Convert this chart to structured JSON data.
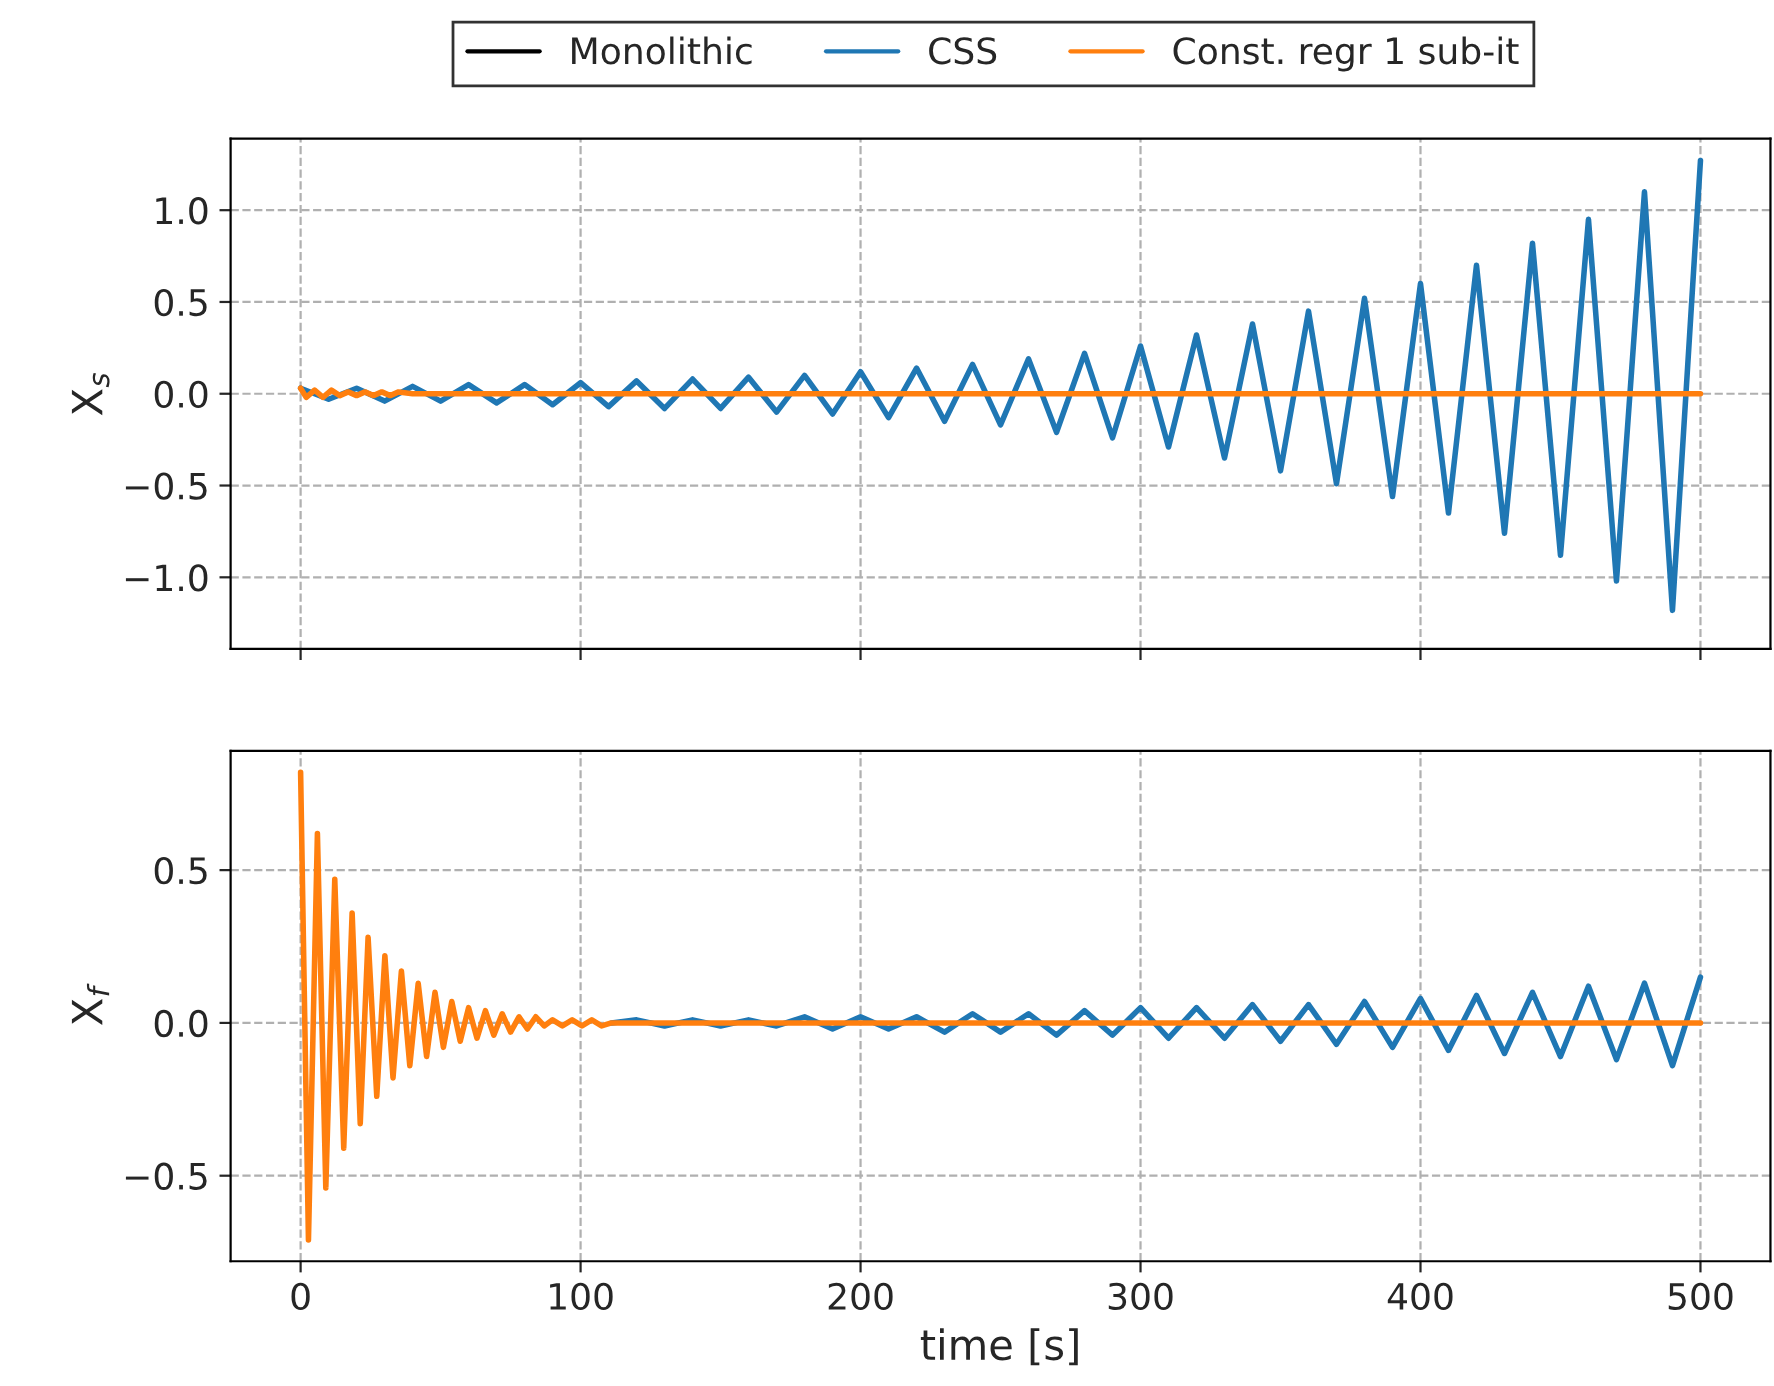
{
  "chart_data": [
    {
      "type": "line",
      "ylabel": "X$_{s}$",
      "legend": "top",
      "grid": true,
      "tick_labels": "y",
      "xlim": [
        -25,
        525
      ],
      "ylim": [
        -1.39,
        1.39
      ],
      "xticks": [
        {
          "value": 0,
          "label": null
        },
        {
          "value": 100,
          "label": null
        },
        {
          "value": 200,
          "label": null
        },
        {
          "value": 300,
          "label": null
        },
        {
          "value": 400,
          "label": null
        },
        {
          "value": 500,
          "label": null
        }
      ],
      "yticks": [
        {
          "value": -1.0,
          "label": "−1.0"
        },
        {
          "value": -0.5,
          "label": "−0.5"
        },
        {
          "value": 0.0,
          "label": "0.0"
        },
        {
          "value": 0.5,
          "label": "0.5"
        },
        {
          "value": 1.0,
          "label": "1.0"
        }
      ],
      "series": [
        {
          "name": "Monolithic",
          "color": "#000000"
        },
        {
          "name": "CSS",
          "color": "#1f77b4",
          "x": [
            0,
            10,
            20,
            30,
            40,
            50,
            60,
            70,
            80,
            90,
            100,
            110,
            120,
            130,
            140,
            150,
            160,
            170,
            180,
            190,
            200,
            210,
            220,
            230,
            240,
            250,
            260,
            270,
            280,
            290,
            300,
            310,
            320,
            330,
            340,
            350,
            360,
            370,
            380,
            390,
            400,
            410,
            420,
            430,
            440,
            450,
            460,
            470,
            480,
            490,
            500
          ],
          "values": [
            0.03,
            -0.03,
            0.03,
            -0.04,
            0.04,
            -0.04,
            0.05,
            -0.05,
            0.05,
            -0.06,
            0.06,
            -0.07,
            0.07,
            -0.08,
            0.08,
            -0.08,
            0.09,
            -0.1,
            0.1,
            -0.11,
            0.12,
            -0.13,
            0.14,
            -0.15,
            0.16,
            -0.17,
            0.19,
            -0.21,
            0.22,
            -0.24,
            0.26,
            -0.29,
            0.32,
            -0.35,
            0.38,
            -0.42,
            0.45,
            -0.49,
            0.52,
            -0.56,
            0.6,
            -0.65,
            0.7,
            -0.76,
            0.82,
            -0.88,
            0.95,
            -1.02,
            1.1,
            -1.18,
            1.27
          ]
        },
        {
          "name": "Const. regr 1 sub-it",
          "color": "#ff7f0e",
          "x": [
            0,
            2,
            5,
            8,
            11,
            14,
            17,
            20,
            23,
            26,
            29,
            32,
            35,
            40,
            500
          ],
          "values": [
            0.03,
            -0.02,
            0.02,
            -0.02,
            0.02,
            -0.01,
            0.01,
            -0.01,
            0.01,
            -0.01,
            0.01,
            -0.01,
            0.01,
            0,
            0
          ]
        }
      ]
    },
    {
      "type": "line",
      "ylabel": "X$_{f}$",
      "xlabel": "time [s]",
      "grid": true,
      "xlim": [
        -25,
        525
      ],
      "ylim": [
        -0.78,
        0.89
      ],
      "xticks": [
        0,
        100,
        200,
        300,
        400,
        500
      ],
      "yticks": [
        {
          "value": -0.5,
          "label": "−0.5"
        },
        {
          "value": 0.0,
          "label": "0.0"
        },
        {
          "value": 0.5,
          "label": "0.5"
        }
      ],
      "series": [
        {
          "color": "#1f77b4",
          "x": [
            111,
            120,
            130,
            140,
            150,
            160,
            170,
            180,
            190,
            200,
            210,
            220,
            230,
            240,
            250,
            260,
            270,
            280,
            290,
            300,
            310,
            320,
            330,
            340,
            350,
            360,
            370,
            380,
            390,
            400,
            410,
            420,
            430,
            440,
            450,
            460,
            470,
            480,
            490,
            500
          ],
          "values": [
            0.0,
            0.01,
            -0.01,
            0.01,
            -0.01,
            0.01,
            -0.01,
            0.02,
            -0.02,
            0.02,
            -0.02,
            0.02,
            -0.03,
            0.03,
            -0.03,
            0.03,
            -0.04,
            0.04,
            -0.04,
            0.05,
            -0.05,
            0.05,
            -0.05,
            0.06,
            -0.06,
            0.06,
            -0.07,
            0.07,
            -0.08,
            0.08,
            -0.09,
            0.09,
            -0.1,
            0.1,
            -0.11,
            0.12,
            -0.12,
            0.13,
            -0.14,
            0.15
          ]
        },
        {
          "color": "#ff7f0e",
          "x": [
            0,
            2.8,
            6,
            9,
            12.2,
            15.4,
            18.4,
            21.3,
            24.1,
            27.2,
            30.1,
            33,
            36,
            39,
            42,
            45,
            48,
            51,
            54,
            57,
            60,
            63,
            66,
            69,
            72,
            75,
            78,
            81,
            84,
            87,
            90,
            93.5,
            97,
            100.5,
            104,
            107.5,
            111,
            120,
            500
          ],
          "values": [
            0.82,
            -0.71,
            0.62,
            -0.54,
            0.47,
            -0.41,
            0.36,
            -0.33,
            0.28,
            -0.24,
            0.22,
            -0.18,
            0.17,
            -0.14,
            0.13,
            -0.11,
            0.1,
            -0.08,
            0.07,
            -0.06,
            0.05,
            -0.05,
            0.04,
            -0.04,
            0.03,
            -0.03,
            0.02,
            -0.02,
            0.02,
            -0.01,
            0.01,
            -0.01,
            0.01,
            -0.01,
            0.01,
            -0.01,
            0.0,
            0,
            0
          ]
        }
      ]
    }
  ]
}
